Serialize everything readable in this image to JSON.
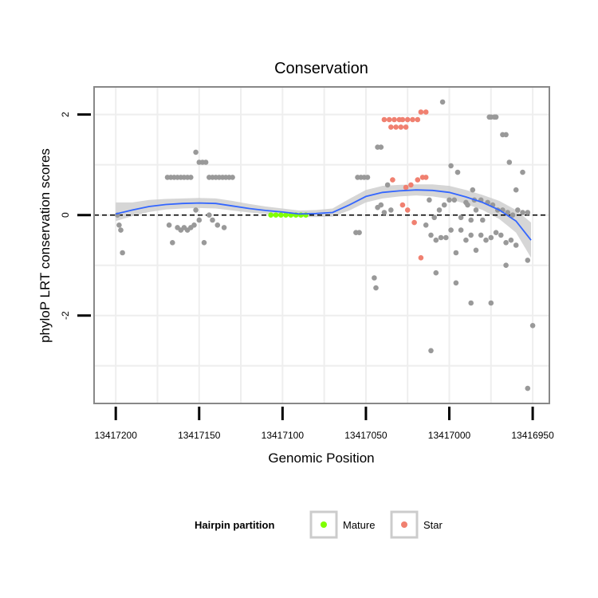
{
  "chart_data": {
    "type": "scatter",
    "title": "Conservation",
    "xlabel": "Genomic Position",
    "ylabel": "phyloP LRT conservation scores",
    "x_reversed": true,
    "xlim": [
      13417213,
      13416940
    ],
    "ylim": [
      -3.75,
      2.55
    ],
    "x_ticks": [
      13417200,
      13417150,
      13417100,
      13417050,
      13417000,
      13416950
    ],
    "x_tick_labels": [
      "13417200",
      "13417150",
      "13417100",
      "13417050",
      "13417000",
      "13416950"
    ],
    "y_ticks": [
      2,
      0,
      -2
    ],
    "y_tick_labels": [
      "2",
      "0",
      "-2"
    ],
    "reference_line": {
      "y": 0,
      "style": "dashed"
    },
    "legend": {
      "title": "Hairpin partition",
      "position": "bottom",
      "items": [
        {
          "label": "Mature",
          "color": "#7fff00"
        },
        {
          "label": "Star",
          "color": "#f08070"
        }
      ]
    },
    "colors": {
      "other": "#999999",
      "mature": "#7fff00",
      "star": "#f08070",
      "smooth_line": "#3366ff",
      "ribbon": "#cccccc",
      "panel_border": "#888888",
      "grid": "#eeeeee"
    },
    "series": [
      {
        "name": "Other",
        "points": [
          [
            13417199,
            0
          ],
          [
            13417198,
            -0.2
          ],
          [
            13417197,
            -0.3
          ],
          [
            13417196,
            -0.75
          ],
          [
            13417169,
            0.75
          ],
          [
            13417167,
            0.75
          ],
          [
            13417165,
            0.75
          ],
          [
            13417163,
            0.75
          ],
          [
            13417161,
            0.75
          ],
          [
            13417159,
            0.75
          ],
          [
            13417157,
            0.75
          ],
          [
            13417155,
            0.75
          ],
          [
            13417152,
            1.25
          ],
          [
            13417150,
            1.05
          ],
          [
            13417148,
            1.05
          ],
          [
            13417146,
            1.05
          ],
          [
            13417144,
            0.75
          ],
          [
            13417142,
            0.75
          ],
          [
            13417140,
            0.75
          ],
          [
            13417138,
            0.75
          ],
          [
            13417136,
            0.75
          ],
          [
            13417134,
            0.75
          ],
          [
            13417132,
            0.75
          ],
          [
            13417130,
            0.75
          ],
          [
            13417152,
            0.1
          ],
          [
            13417150,
            -0.1
          ],
          [
            13417147,
            -0.55
          ],
          [
            13417144,
            0
          ],
          [
            13417142,
            -0.1
          ],
          [
            13417139,
            -0.2
          ],
          [
            13417135,
            -0.25
          ],
          [
            13417168,
            -0.2
          ],
          [
            13417166,
            -0.55
          ],
          [
            13417163,
            -0.25
          ],
          [
            13417161,
            -0.3
          ],
          [
            13417159,
            -0.25
          ],
          [
            13417157,
            -0.3
          ],
          [
            13417155,
            -0.25
          ],
          [
            13417153,
            -0.2
          ],
          [
            13417055,
            0.75
          ],
          [
            13417053,
            0.75
          ],
          [
            13417051,
            0.75
          ],
          [
            13417049,
            0.75
          ],
          [
            13417056,
            -0.35
          ],
          [
            13417054,
            -0.35
          ],
          [
            13417045,
            -1.25
          ],
          [
            13417044,
            -1.45
          ],
          [
            13417043,
            1.35
          ],
          [
            13417041,
            1.35
          ],
          [
            13417043,
            0.15
          ],
          [
            13417041,
            0.2
          ],
          [
            13417039,
            0.05
          ],
          [
            13417037,
            0.6
          ],
          [
            13417035,
            0.1
          ],
          [
            13417004,
            2.25
          ],
          [
            13416999,
            0.98
          ],
          [
            13416995,
            0.85
          ],
          [
            13416989,
            0.2
          ],
          [
            13416986,
            0.5
          ],
          [
            13416975,
            1.95
          ],
          [
            13416972,
            1.95
          ],
          [
            13416968,
            1.6
          ],
          [
            13416966,
            1.6
          ],
          [
            13416976,
            1.95
          ],
          [
            13416973,
            1.95
          ],
          [
            13417012,
            0.3
          ],
          [
            13417009,
            -0.05
          ],
          [
            13417006,
            0.1
          ],
          [
            13417003,
            0.2
          ],
          [
            13417000,
            0.3
          ],
          [
            13416997,
            0.3
          ],
          [
            13416993,
            -0.05
          ],
          [
            13416990,
            0.25
          ],
          [
            13416987,
            -0.1
          ],
          [
            13416984,
            0.1
          ],
          [
            13416980,
            -0.1
          ],
          [
            13416977,
            0.25
          ],
          [
            13416974,
            0.2
          ],
          [
            13416971,
            0.1
          ],
          [
            13416968,
            0.1
          ],
          [
            13416965,
            0.05
          ],
          [
            13416962,
            0
          ],
          [
            13416959,
            0.1
          ],
          [
            13416956,
            0.05
          ],
          [
            13416953,
            0.05
          ],
          [
            13417014,
            -0.2
          ],
          [
            13417011,
            -0.4
          ],
          [
            13417008,
            -0.5
          ],
          [
            13417005,
            -0.45
          ],
          [
            13417002,
            -0.45
          ],
          [
            13416999,
            -0.3
          ],
          [
            13416996,
            -0.75
          ],
          [
            13416993,
            -0.3
          ],
          [
            13416990,
            -0.5
          ],
          [
            13416987,
            -0.4
          ],
          [
            13416984,
            -0.7
          ],
          [
            13416981,
            -0.4
          ],
          [
            13416978,
            -0.5
          ],
          [
            13416975,
            -0.45
          ],
          [
            13416972,
            -0.35
          ],
          [
            13416969,
            -0.4
          ],
          [
            13416966,
            -0.55
          ],
          [
            13416963,
            -0.5
          ],
          [
            13416960,
            -0.6
          ],
          [
            13417008,
            -1.15
          ],
          [
            13416996,
            -1.35
          ],
          [
            13416987,
            -1.75
          ],
          [
            13416975,
            -1.75
          ],
          [
            13416966,
            -1.0
          ],
          [
            13416953,
            -0.9
          ],
          [
            13417011,
            -2.7
          ],
          [
            13416953,
            -3.45
          ],
          [
            13416950,
            -2.2
          ],
          [
            13416956,
            0.85
          ],
          [
            13416960,
            0.5
          ],
          [
            13416964,
            1.05
          ],
          [
            13416981,
            0.3
          ],
          [
            13416985,
            0.3
          ]
        ]
      },
      {
        "name": "Mature",
        "points": [
          [
            13417107,
            0
          ],
          [
            13417104,
            0
          ],
          [
            13417101,
            0
          ],
          [
            13417098,
            0
          ],
          [
            13417095,
            0
          ],
          [
            13417092,
            0
          ],
          [
            13417089,
            0
          ],
          [
            13417086,
            0
          ]
        ]
      },
      {
        "name": "Star",
        "points": [
          [
            13417039,
            1.9
          ],
          [
            13417036,
            1.9
          ],
          [
            13417033,
            1.9
          ],
          [
            13417030,
            1.9
          ],
          [
            13417028,
            1.9
          ],
          [
            13417025,
            1.9
          ],
          [
            13417022,
            1.9
          ],
          [
            13417019,
            1.9
          ],
          [
            13417035,
            1.75
          ],
          [
            13417032,
            1.75
          ],
          [
            13417029,
            1.75
          ],
          [
            13417026,
            1.75
          ],
          [
            13417017,
            2.05
          ],
          [
            13417014,
            2.05
          ],
          [
            13417034,
            0.7
          ],
          [
            13417026,
            0.55
          ],
          [
            13417023,
            0.6
          ],
          [
            13417019,
            0.7
          ],
          [
            13417016,
            0.75
          ],
          [
            13417014,
            0.75
          ],
          [
            13417028,
            0.2
          ],
          [
            13417025,
            0.1
          ],
          [
            13417021,
            -0.15
          ],
          [
            13417017,
            -0.85
          ]
        ]
      }
    ],
    "smooth_fit": [
      [
        13417200,
        0.02
      ],
      [
        13417190,
        0.1
      ],
      [
        13417180,
        0.17
      ],
      [
        13417170,
        0.21
      ],
      [
        13417160,
        0.23
      ],
      [
        13417150,
        0.24
      ],
      [
        13417140,
        0.23
      ],
      [
        13417130,
        0.18
      ],
      [
        13417120,
        0.13
      ],
      [
        13417110,
        0.09
      ],
      [
        13417100,
        0.06
      ],
      [
        13417090,
        0.02
      ],
      [
        13417080,
        0.03
      ],
      [
        13417070,
        0.05
      ],
      [
        13417060,
        0.2
      ],
      [
        13417050,
        0.37
      ],
      [
        13417040,
        0.45
      ],
      [
        13417030,
        0.48
      ],
      [
        13417020,
        0.5
      ],
      [
        13417010,
        0.49
      ],
      [
        13417000,
        0.45
      ],
      [
        13416990,
        0.36
      ],
      [
        13416980,
        0.25
      ],
      [
        13416970,
        0.1
      ],
      [
        13416960,
        -0.12
      ],
      [
        13416951,
        -0.5
      ]
    ],
    "smooth_ci": [
      [
        13417200,
        -0.12,
        0.25
      ],
      [
        13417190,
        -0.02,
        0.25
      ],
      [
        13417180,
        0.06,
        0.3
      ],
      [
        13417170,
        0.11,
        0.32
      ],
      [
        13417160,
        0.13,
        0.33
      ],
      [
        13417150,
        0.14,
        0.34
      ],
      [
        13417140,
        0.13,
        0.33
      ],
      [
        13417130,
        0.09,
        0.28
      ],
      [
        13417120,
        0.05,
        0.22
      ],
      [
        13417110,
        0.02,
        0.17
      ],
      [
        13417100,
        -0.01,
        0.13
      ],
      [
        13417090,
        -0.04,
        0.09
      ],
      [
        13417080,
        -0.04,
        0.1
      ],
      [
        13417070,
        -0.03,
        0.13
      ],
      [
        13417060,
        0.09,
        0.32
      ],
      [
        13417050,
        0.25,
        0.5
      ],
      [
        13417040,
        0.33,
        0.58
      ],
      [
        13417030,
        0.37,
        0.6
      ],
      [
        13417020,
        0.39,
        0.61
      ],
      [
        13417010,
        0.37,
        0.61
      ],
      [
        13417000,
        0.32,
        0.58
      ],
      [
        13416990,
        0.22,
        0.5
      ],
      [
        13416980,
        0.1,
        0.4
      ],
      [
        13416970,
        -0.08,
        0.28
      ],
      [
        13416960,
        -0.35,
        0.1
      ],
      [
        13416951,
        -0.85,
        -0.15
      ]
    ]
  }
}
